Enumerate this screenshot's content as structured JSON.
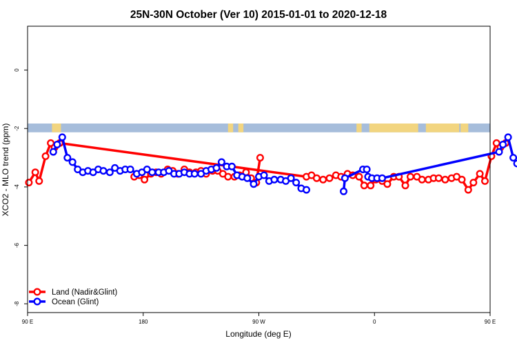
{
  "chart_data": {
    "type": "line",
    "title": "25N-30N October (Ver 10)   2015-01-01 to 2020-12-18",
    "xlabel": "Longitude (deg E)",
    "ylabel": "XCO2 - MLO trend (ppm)",
    "xlim": [
      90,
      450
    ],
    "ylim": [
      -8.3,
      1.5
    ],
    "x_ticks": [
      {
        "value": 90,
        "label": "90 E"
      },
      {
        "value": 180,
        "label": "180"
      },
      {
        "value": 270,
        "label": "90 W"
      },
      {
        "value": 360,
        "label": "0"
      },
      {
        "value": 450,
        "label": "90 E"
      },
      {
        "value": 540,
        "label": "180"
      }
    ],
    "y_ticks": [
      {
        "value": 0,
        "label": "0"
      },
      {
        "value": -2,
        "label": "-2"
      },
      {
        "value": -4,
        "label": "-4"
      },
      {
        "value": -6,
        "label": "-6"
      },
      {
        "value": -8,
        "label": "-8"
      }
    ],
    "grid": false,
    "legend": {
      "position": "bottom-left"
    },
    "land_strip": {
      "y_top": -1.83,
      "y_bottom": -2.13,
      "ocean_color": "#a6bddb",
      "land_color": "#f2d580",
      "land_segments": [
        [
          109,
          116
        ],
        [
          246,
          250
        ],
        [
          254,
          258
        ],
        [
          346,
          350
        ],
        [
          356,
          394
        ],
        [
          400,
          426
        ],
        [
          427,
          433
        ]
      ]
    },
    "series": [
      {
        "name": "Land (Nadir&Glint)",
        "color": "#ff0000",
        "points": [
          [
            91,
            -3.85
          ],
          [
            96,
            -3.5
          ],
          [
            99,
            -3.8
          ],
          [
            104,
            -2.95
          ],
          [
            108,
            -2.5
          ],
          [
            111,
            -2.65
          ],
          [
            115,
            -2.5
          ],
          [
            307,
            -3.65
          ],
          [
            311,
            -3.6
          ],
          [
            315,
            -3.7
          ],
          [
            320,
            -3.75
          ],
          [
            325,
            -3.7
          ],
          [
            330,
            -3.6
          ],
          [
            334,
            -3.65
          ],
          [
            339,
            -3.55
          ],
          [
            343,
            -3.6
          ],
          [
            348,
            -3.65
          ],
          [
            352,
            -3.95
          ],
          [
            357,
            -3.95
          ],
          [
            361,
            -3.75
          ],
          [
            366,
            -3.8
          ],
          [
            370,
            -3.9
          ],
          [
            375,
            -3.65
          ],
          [
            379,
            -3.65
          ],
          [
            384,
            -3.95
          ],
          [
            388,
            -3.65
          ],
          [
            393,
            -3.65
          ],
          [
            397,
            -3.75
          ],
          [
            402,
            -3.75
          ],
          [
            406,
            -3.7
          ],
          [
            410,
            -3.7
          ],
          [
            415,
            -3.75
          ],
          [
            420,
            -3.7
          ],
          [
            424,
            -3.65
          ],
          [
            428,
            -3.75
          ],
          [
            433,
            -4.1
          ],
          [
            437,
            -3.85
          ],
          [
            442,
            -3.55
          ],
          [
            446,
            -3.8
          ],
          [
            451,
            -2.95
          ],
          [
            455,
            -2.5
          ],
          [
            458,
            -2.65
          ],
          [
            462,
            -2.5
          ]
        ],
        "points_second": [
          [
            173,
            -3.65
          ],
          [
            177,
            -3.6
          ],
          [
            181,
            -3.75
          ],
          [
            186,
            -3.55
          ],
          [
            190,
            -3.5
          ],
          [
            194,
            -3.55
          ],
          [
            199,
            -3.4
          ],
          [
            203,
            -3.45
          ],
          [
            207,
            -3.55
          ],
          [
            212,
            -3.4
          ],
          [
            216,
            -3.5
          ],
          [
            221,
            -3.5
          ],
          [
            225,
            -3.45
          ],
          [
            229,
            -3.55
          ],
          [
            234,
            -3.45
          ],
          [
            238,
            -3.45
          ],
          [
            242,
            -3.55
          ],
          [
            246,
            -3.65
          ],
          [
            251,
            -3.65
          ],
          [
            255,
            -3.6
          ],
          [
            260,
            -3.5
          ],
          [
            264,
            -3.7
          ],
          [
            268,
            -3.85
          ],
          [
            271,
            -3.0
          ]
        ]
      },
      {
        "name": "Ocean (Glint)",
        "color": "#0000ff",
        "points": [
          [
            110,
            -2.8
          ],
          [
            113,
            -2.55
          ],
          [
            117,
            -2.3
          ],
          [
            121,
            -3.0
          ],
          [
            125,
            -3.15
          ],
          [
            129,
            -3.4
          ],
          [
            133,
            -3.5
          ],
          [
            137,
            -3.45
          ],
          [
            141,
            -3.5
          ],
          [
            145,
            -3.4
          ],
          [
            149,
            -3.45
          ],
          [
            154,
            -3.5
          ],
          [
            158,
            -3.35
          ],
          [
            162,
            -3.45
          ],
          [
            166,
            -3.4
          ],
          [
            170,
            -3.4
          ],
          [
            175,
            -3.55
          ],
          [
            179,
            -3.5
          ],
          [
            183,
            -3.4
          ],
          [
            187,
            -3.5
          ],
          [
            192,
            -3.5
          ],
          [
            196,
            -3.5
          ],
          [
            200,
            -3.45
          ],
          [
            204,
            -3.55
          ],
          [
            208,
            -3.55
          ],
          [
            212,
            -3.5
          ],
          [
            216,
            -3.55
          ],
          [
            220,
            -3.55
          ],
          [
            225,
            -3.55
          ],
          [
            229,
            -3.45
          ],
          [
            233,
            -3.4
          ],
          [
            237,
            -3.35
          ],
          [
            241,
            -3.15
          ],
          [
            245,
            -3.3
          ],
          [
            249,
            -3.3
          ],
          [
            253,
            -3.6
          ],
          [
            257,
            -3.65
          ],
          [
            261,
            -3.7
          ],
          [
            266,
            -3.9
          ],
          [
            270,
            -3.65
          ],
          [
            274,
            -3.6
          ],
          [
            278,
            -3.8
          ],
          [
            282,
            -3.75
          ],
          [
            287,
            -3.75
          ],
          [
            291,
            -3.8
          ],
          [
            295,
            -3.7
          ],
          [
            299,
            -3.85
          ],
          [
            303,
            -4.05
          ],
          [
            307,
            -4.1
          ]
        ],
        "points_second": [
          [
            336,
            -4.15
          ],
          [
            337,
            -3.7
          ],
          [
            351,
            -3.4
          ],
          [
            354,
            -3.4
          ],
          [
            355,
            -3.65
          ],
          [
            358,
            -3.7
          ],
          [
            362,
            -3.7
          ],
          [
            366,
            -3.7
          ],
          [
            457,
            -2.8
          ],
          [
            460,
            -2.55
          ],
          [
            464,
            -2.3
          ],
          [
            468,
            -3.0
          ],
          [
            471,
            -3.2
          ],
          [
            475,
            -3.4
          ],
          [
            479,
            -3.5
          ],
          [
            483,
            -3.45
          ],
          [
            487,
            -3.5
          ],
          [
            491,
            -3.4
          ],
          [
            495,
            -3.45
          ],
          [
            499,
            -3.5
          ],
          [
            503,
            -3.35
          ]
        ]
      }
    ]
  }
}
